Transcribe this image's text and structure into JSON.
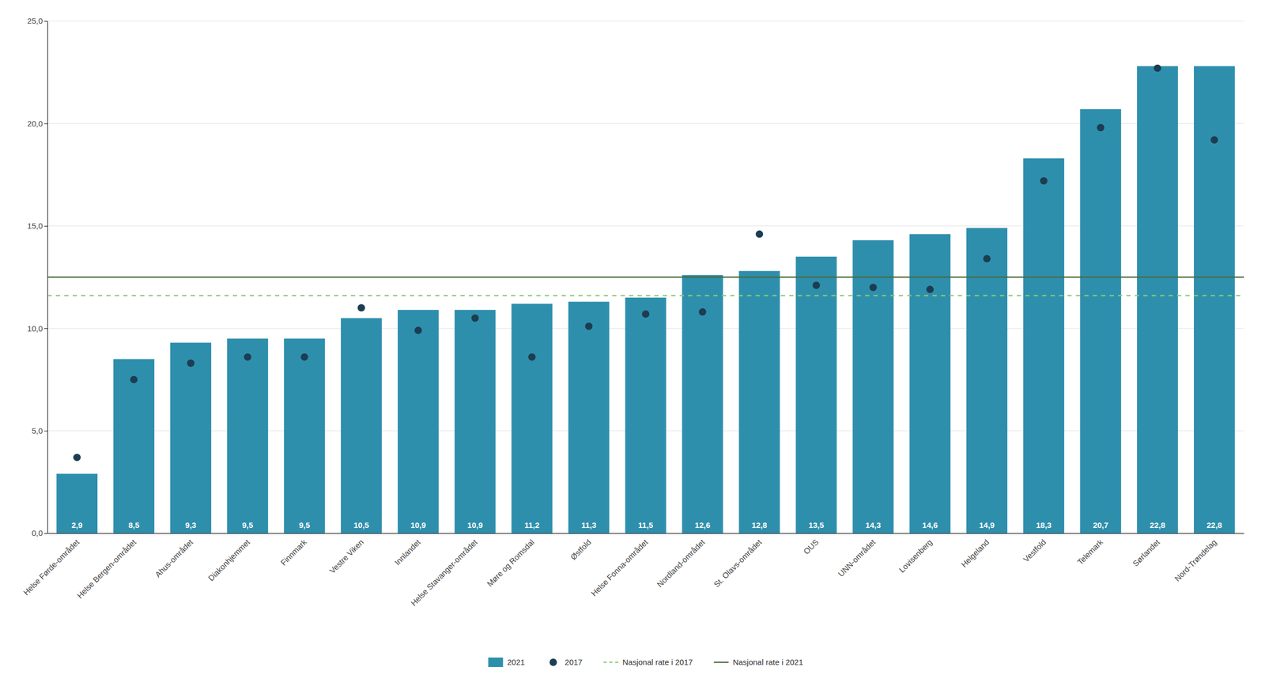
{
  "chart_data": {
    "type": "bar",
    "categories": [
      "Helse Førde-området",
      "Helse Bergen-området",
      "Ahus-området",
      "Diakonhjemmet",
      "Finnmark",
      "Vestre Viken",
      "Innlandet",
      "Helse Stavanger-området",
      "Møre og Romsdal",
      "Østfold",
      "Helse Fonna-området",
      "Nordland-området",
      "St. Olavs-området",
      "OUS",
      "UNN-området",
      "Lovisenberg",
      "Helgeland",
      "Vestfold",
      "Telemark",
      "Sørlandet",
      "Nord-Trøndelag"
    ],
    "series": [
      {
        "name": "2021",
        "type": "bar",
        "color": "#2e8fad",
        "values": [
          2.9,
          8.5,
          9.3,
          9.5,
          9.5,
          10.5,
          10.9,
          10.9,
          11.2,
          11.3,
          11.5,
          12.6,
          12.8,
          13.5,
          14.3,
          14.6,
          14.9,
          18.3,
          20.7,
          22.8,
          22.8
        ],
        "value_labels": [
          "2,9",
          "8,5",
          "9,3",
          "9,5",
          "9,5",
          "10,5",
          "10,9",
          "10,9",
          "11,2",
          "11,3",
          "11,5",
          "12,6",
          "12,8",
          "13,5",
          "14,3",
          "14,6",
          "14,9",
          "18,3",
          "20,7",
          "22,8",
          "22,8"
        ],
        "data_labels": true
      },
      {
        "name": "2017",
        "type": "scatter",
        "color": "#1c3d52",
        "marker": "circle",
        "values": [
          3.7,
          7.5,
          8.3,
          8.6,
          8.6,
          11.0,
          9.9,
          10.5,
          8.6,
          10.1,
          10.7,
          10.8,
          14.6,
          12.1,
          12.0,
          11.9,
          13.4,
          17.2,
          19.8,
          22.7,
          19.2
        ]
      },
      {
        "name": "Nasjonal rate i 2017",
        "type": "hline",
        "color": "#8dc87a",
        "line_style": "dashed",
        "value": 11.6
      },
      {
        "name": "Nasjonal rate i 2021",
        "type": "hline",
        "color": "#4a6b3e",
        "line_style": "solid",
        "value": 12.5
      }
    ],
    "ylim": [
      0,
      25.0
    ],
    "yticks": [
      {
        "value": 0.0,
        "label": "0,0"
      },
      {
        "value": 5.0,
        "label": "5,0"
      },
      {
        "value": 10.0,
        "label": "10,0"
      },
      {
        "value": 15.0,
        "label": "15,0"
      },
      {
        "value": 20.0,
        "label": "20,0"
      },
      {
        "value": 25.0,
        "label": "25,0"
      }
    ],
    "grid": true,
    "legend": "bottom"
  }
}
